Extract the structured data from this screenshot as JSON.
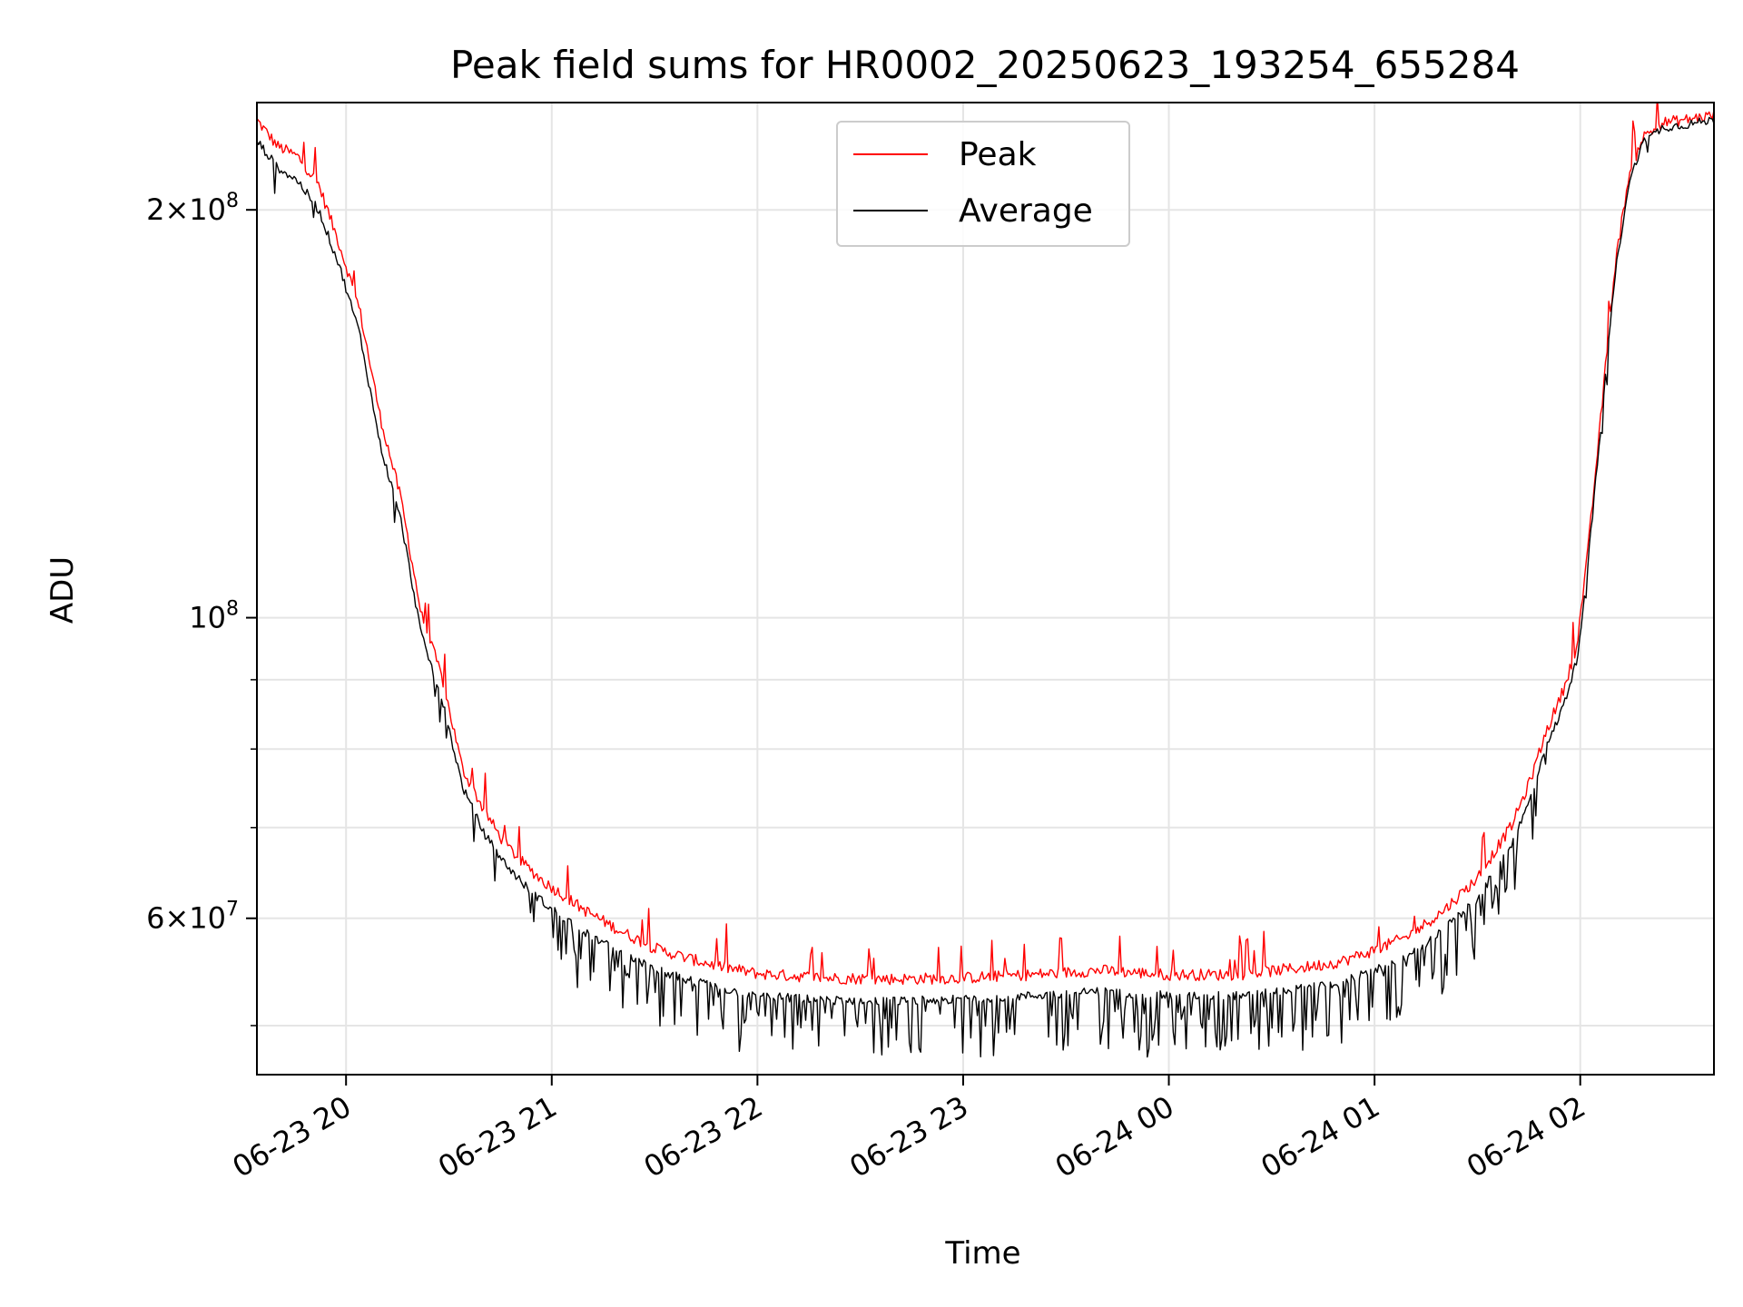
{
  "chart_data": {
    "type": "line",
    "title": "Peak field sums for HR0002_20250623_193254_655284",
    "xlabel": "Time",
    "ylabel": "ADU",
    "yscale": "log",
    "xlim": [
      "2025-06-23 19:34",
      "2025-06-24 02:39"
    ],
    "ylim": [
      46000000,
      240000000
    ],
    "x_ticks": [
      {
        "value": "2025-06-23 20:00",
        "label": "06-23 20"
      },
      {
        "value": "2025-06-23 21:00",
        "label": "06-23 21"
      },
      {
        "value": "2025-06-23 22:00",
        "label": "06-23 22"
      },
      {
        "value": "2025-06-23 23:00",
        "label": "06-23 23"
      },
      {
        "value": "2025-06-24 00:00",
        "label": "06-24 00"
      },
      {
        "value": "2025-06-24 01:00",
        "label": "06-24 01"
      },
      {
        "value": "2025-06-24 02:00",
        "label": "06-24 02"
      }
    ],
    "y_ticks": [
      {
        "value": 60000000,
        "mant": "6",
        "exp": "7"
      },
      {
        "value": 100000000,
        "mant": "",
        "exp": "8"
      },
      {
        "value": 200000000,
        "mant": "2",
        "exp": "8"
      }
    ],
    "y_minor_grid": [
      50000000,
      70000000,
      80000000,
      90000000
    ],
    "grid": true,
    "legend": {
      "placement": "top-center"
    },
    "series": [
      {
        "name": "Peak",
        "color": "#ff0000",
        "x": [
          "2025-06-23 19:34",
          "2025-06-23 19:40",
          "2025-06-23 19:46",
          "2025-06-23 19:52",
          "2025-06-23 19:58",
          "2025-06-23 20:04",
          "2025-06-23 20:10",
          "2025-06-23 20:16",
          "2025-06-23 20:22",
          "2025-06-23 20:28",
          "2025-06-23 20:34",
          "2025-06-23 20:40",
          "2025-06-23 20:46",
          "2025-06-23 20:52",
          "2025-06-23 20:58",
          "2025-06-23 21:10",
          "2025-06-23 21:20",
          "2025-06-23 21:30",
          "2025-06-23 21:40",
          "2025-06-23 21:50",
          "2025-06-23 22:00",
          "2025-06-23 22:20",
          "2025-06-23 22:40",
          "2025-06-23 23:00",
          "2025-06-23 23:20",
          "2025-06-23 23:40",
          "2025-06-24 00:00",
          "2025-06-24 00:20",
          "2025-06-24 00:40",
          "2025-06-24 00:50",
          "2025-06-24 01:00",
          "2025-06-24 01:10",
          "2025-06-24 01:20",
          "2025-06-24 01:30",
          "2025-06-24 01:40",
          "2025-06-24 01:45",
          "2025-06-24 01:50",
          "2025-06-24 01:55",
          "2025-06-24 01:59",
          "2025-06-24 02:02",
          "2025-06-24 02:06",
          "2025-06-24 02:10",
          "2025-06-24 02:14",
          "2025-06-24 02:18",
          "2025-06-24 02:24",
          "2025-06-24 02:30",
          "2025-06-24 02:39"
        ],
        "values": [
          232000000,
          222000000,
          218000000,
          208000000,
          188000000,
          168000000,
          140000000,
          122000000,
          100000000,
          90000000,
          77000000,
          72000000,
          68000000,
          65500000,
          63500000,
          60500000,
          58500000,
          56800000,
          55800000,
          55000000,
          54400000,
          54000000,
          53900000,
          54000000,
          54300000,
          54700000,
          54300000,
          54300000,
          55000000,
          55500000,
          56600000,
          58000000,
          60500000,
          64000000,
          70000000,
          75000000,
          82000000,
          88000000,
          95000000,
          110000000,
          140000000,
          180000000,
          210000000,
          225000000,
          231000000,
          232000000,
          234000000
        ]
      },
      {
        "name": "Average",
        "color": "#000000",
        "x": [
          "2025-06-23 19:34",
          "2025-06-23 19:40",
          "2025-06-23 19:46",
          "2025-06-23 19:52",
          "2025-06-23 19:58",
          "2025-06-23 20:04",
          "2025-06-23 20:10",
          "2025-06-23 20:16",
          "2025-06-23 20:22",
          "2025-06-23 20:28",
          "2025-06-23 20:34",
          "2025-06-23 20:40",
          "2025-06-23 20:46",
          "2025-06-23 20:52",
          "2025-06-23 20:58",
          "2025-06-23 21:10",
          "2025-06-23 21:20",
          "2025-06-23 21:30",
          "2025-06-23 21:40",
          "2025-06-23 21:50",
          "2025-06-23 22:00",
          "2025-06-23 22:20",
          "2025-06-23 22:40",
          "2025-06-23 23:00",
          "2025-06-23 23:20",
          "2025-06-23 23:40",
          "2025-06-24 00:00",
          "2025-06-24 00:20",
          "2025-06-24 00:40",
          "2025-06-24 00:50",
          "2025-06-24 01:00",
          "2025-06-24 01:10",
          "2025-06-24 01:20",
          "2025-06-24 01:30",
          "2025-06-24 01:40",
          "2025-06-24 01:45",
          "2025-06-24 01:50",
          "2025-06-24 01:55",
          "2025-06-24 01:59",
          "2025-06-24 02:02",
          "2025-06-24 02:06",
          "2025-06-24 02:10",
          "2025-06-24 02:14",
          "2025-06-24 02:18",
          "2025-06-24 02:24",
          "2025-06-24 02:30",
          "2025-06-24 02:39"
        ],
        "values": [
          225000000,
          215000000,
          210000000,
          200000000,
          182000000,
          162000000,
          134000000,
          118000000,
          97000000,
          87000000,
          75000000,
          69500000,
          66000000,
          63500000,
          61500000,
          58500000,
          56600000,
          55000000,
          54000000,
          53200000,
          52600000,
          52200000,
          52100000,
          52300000,
          52600000,
          53000000,
          52600000,
          52600000,
          53300000,
          53800000,
          54900000,
          56200000,
          58800000,
          62000000,
          68000000,
          73000000,
          80000000,
          86000000,
          93000000,
          108000000,
          138000000,
          178000000,
          208000000,
          224000000,
          230000000,
          231000000,
          233000000
        ]
      }
    ]
  }
}
